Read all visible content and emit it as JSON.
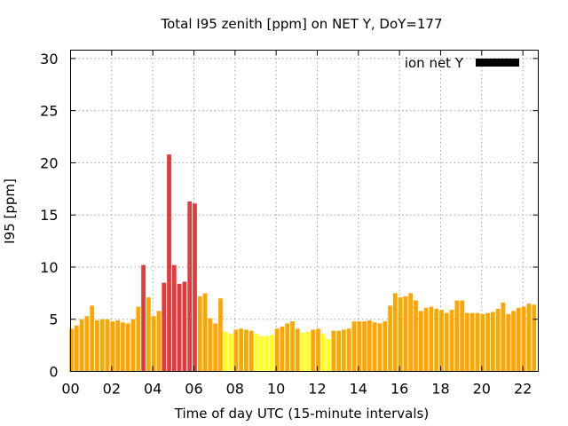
{
  "chart_data": {
    "type": "bar",
    "title": "Total I95 zenith [ppm] on NET Y, DoY=177",
    "xlabel": "Time of day UTC (15-minute intervals)",
    "ylabel": "I95 [ppm]",
    "xlim": [
      0,
      22.75
    ],
    "ylim": [
      0,
      30.8
    ],
    "grid": true,
    "legend_position": "top-right",
    "x_tick_values": [
      0,
      2,
      4,
      6,
      8,
      10,
      12,
      14,
      16,
      18,
      20,
      22
    ],
    "x_tick_labels": [
      "00",
      "02",
      "04",
      "06",
      "08",
      "10",
      "12",
      "14",
      "16",
      "18",
      "20",
      "22"
    ],
    "y_tick_values": [
      0,
      5,
      10,
      15,
      20,
      25,
      30
    ],
    "y_tick_labels": [
      "0",
      "5",
      "10",
      "15",
      "20",
      "25",
      "30"
    ],
    "series": [
      {
        "name": "ion net Y",
        "legend_color": "#000000",
        "interval_hours": 0.25,
        "values": [
          4.1,
          4.4,
          5.0,
          5.3,
          6.3,
          4.9,
          5.0,
          5.0,
          4.8,
          4.9,
          4.7,
          4.6,
          5.0,
          6.2,
          10.2,
          7.1,
          5.3,
          5.8,
          8.5,
          20.8,
          10.2,
          8.4,
          8.6,
          16.3,
          16.1,
          7.2,
          7.5,
          5.1,
          4.6,
          7.0,
          3.8,
          3.6,
          4.0,
          4.1,
          4.0,
          3.9,
          3.6,
          3.4,
          3.4,
          3.5,
          4.1,
          4.3,
          4.6,
          4.8,
          4.1,
          3.7,
          3.8,
          4.0,
          4.1,
          3.6,
          3.1,
          3.9,
          3.9,
          4.0,
          4.1,
          4.8,
          4.8,
          4.8,
          4.9,
          4.7,
          4.6,
          4.8,
          6.3,
          7.5,
          7.1,
          7.2,
          7.5,
          6.8,
          5.8,
          6.1,
          6.2,
          6.0,
          5.9,
          5.6,
          5.9,
          6.8,
          6.8,
          5.6,
          5.6,
          5.6,
          5.5,
          5.6,
          5.7,
          6.0,
          6.6,
          5.5,
          5.8,
          6.1,
          6.2,
          6.5,
          6.4
        ]
      }
    ],
    "color_scale": {
      "yellow": "#ffff1a",
      "orange": "#ffa500",
      "red": "#e33b3b",
      "yellow_below": 3.85,
      "red_from": 8.0
    }
  }
}
